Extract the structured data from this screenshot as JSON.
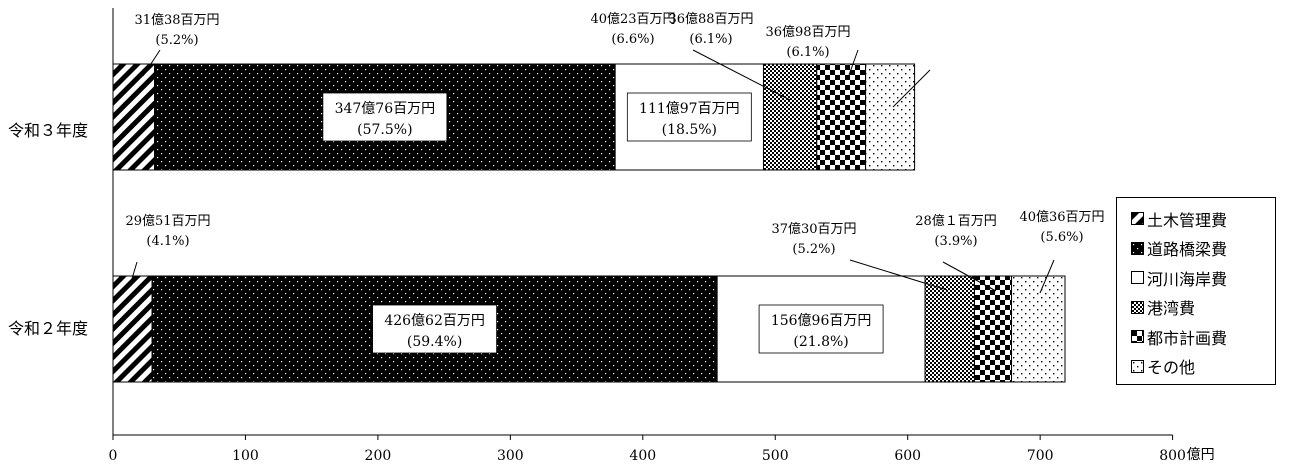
{
  "chart_data": {
    "type": "bar",
    "orientation": "horizontal",
    "stacked": true,
    "unit": "億円",
    "xlim": [
      0,
      800
    ],
    "xticks": [
      0,
      100,
      200,
      300,
      400,
      500,
      600,
      700,
      800
    ],
    "categories": [
      "令和３年度",
      "令和２年度"
    ],
    "series": [
      {
        "name": "土木管理費",
        "pattern": "diagonal-stripes",
        "values": [
          31.38,
          29.51
        ],
        "labels": [
          [
            "31億38百万円",
            "(5.2%)"
          ],
          [
            "29億51百万円",
            "(4.1%)"
          ]
        ]
      },
      {
        "name": "道路橋梁費",
        "pattern": "dark-dotted",
        "values": [
          347.76,
          426.62
        ],
        "labels": [
          [
            "347億76百万円",
            "(57.5%)"
          ],
          [
            "426億62百万円",
            "(59.4%)"
          ]
        ]
      },
      {
        "name": "河川海岸費",
        "pattern": "white",
        "values": [
          111.97,
          156.96
        ],
        "labels": [
          [
            "111億97百万円",
            "(18.5%)"
          ],
          [
            "156億96百万円",
            "(21.8%)"
          ]
        ]
      },
      {
        "name": "港湾費",
        "pattern": "fine-checker",
        "values": [
          40.23,
          37.3
        ],
        "labels": [
          [
            "40億23百万円",
            "(6.6%)"
          ],
          [
            "37億30百万円",
            "(5.2%)"
          ]
        ]
      },
      {
        "name": "都市計画費",
        "pattern": "checker",
        "values": [
          36.88,
          28.01
        ],
        "labels": [
          [
            "36億88百万円",
            "(6.1%)"
          ],
          [
            "28億１百万円",
            "(3.9%)"
          ]
        ]
      },
      {
        "name": "その他",
        "pattern": "light-dotted",
        "values": [
          36.98,
          40.36
        ],
        "labels": [
          [
            "36億98百万円",
            "(6.1%)"
          ],
          [
            "40億36百万円",
            "(5.6%)"
          ]
        ]
      }
    ],
    "legend": {
      "position": "right",
      "markers": [
        "◪",
        "■",
        "□",
        "▩",
        "□",
        "□"
      ]
    },
    "grid": false
  }
}
